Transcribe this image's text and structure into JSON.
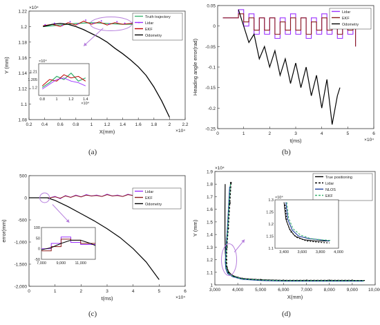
{
  "chart_data": [
    {
      "id": "a",
      "type": "line",
      "caption": "(a)",
      "xlabel": "X(mm)",
      "ylabel": "Y (mm)",
      "x_exponent": "×10⁴",
      "y_exponent": "×10⁴",
      "xlim": [
        0.2,
        2.2
      ],
      "ylim": [
        1.08,
        1.22
      ],
      "x_ticks": [
        "0.2",
        "0.4",
        "0.6",
        "0.8",
        "1",
        "1.2",
        "1.4",
        "1.6",
        "1.8",
        "2",
        "2.2"
      ],
      "y_ticks": [
        "1.08",
        "1.1",
        "1.12",
        "1.14",
        "1.16",
        "1.18",
        "1.2",
        "1.22"
      ],
      "legend": [
        "Truth trajectory",
        "Lidar",
        "EKF",
        "Odometry"
      ],
      "colors": {
        "truth": "#3cb371",
        "lidar": "#9b30ff",
        "ekf": "#c00000",
        "odometry": "#000000",
        "annot": "#b57edc"
      },
      "series": [
        {
          "name": "Truth trajectory",
          "x": [
            0.38,
            0.6,
            0.8,
            1.0,
            1.2,
            1.4,
            1.6
          ],
          "y": [
            1.2,
            1.202,
            1.204,
            1.205,
            1.204,
            1.203,
            1.203
          ]
        },
        {
          "name": "EKF",
          "x": [
            0.38,
            0.5,
            0.6,
            0.7,
            0.8,
            0.9,
            1.0,
            1.1,
            1.2,
            1.3,
            1.4,
            1.5,
            1.6
          ],
          "y": [
            1.201,
            1.203,
            1.2,
            1.205,
            1.202,
            1.207,
            1.203,
            1.206,
            1.202,
            1.205,
            1.203,
            1.204,
            1.203
          ]
        },
        {
          "name": "Odometry",
          "x": [
            0.38,
            0.5,
            0.6,
            0.7,
            0.8,
            0.9,
            1.0,
            1.1,
            1.2,
            1.3,
            1.4,
            1.5,
            1.6,
            1.7,
            1.8,
            1.9,
            2.0
          ],
          "y": [
            1.2,
            1.203,
            1.204,
            1.203,
            1.2,
            1.196,
            1.191,
            1.186,
            1.18,
            1.172,
            1.165,
            1.157,
            1.148,
            1.137,
            1.122,
            1.104,
            1.083
          ]
        }
      ],
      "inset": {
        "x_exponent": "×10⁴",
        "y_exponent": "×10⁴",
        "xlim": [
          0.75,
          1.45
        ],
        "ylim": [
          1.195,
          1.215
        ],
        "x_ticks": [
          "0.8",
          "1",
          "1.2",
          "1.4"
        ],
        "y_ticks": [
          "1.2",
          "1.205",
          "1.21"
        ]
      }
    },
    {
      "id": "b",
      "type": "line",
      "caption": "(b)",
      "xlabel": "t(ms)",
      "ylabel": "Heading angle error(rad)",
      "x_exponent": "×10⁴",
      "xlim": [
        0,
        6
      ],
      "ylim": [
        -0.25,
        0.05
      ],
      "x_ticks": [
        "0",
        "1",
        "2",
        "3",
        "4",
        "5",
        "6"
      ],
      "y_ticks": [
        "0.05",
        "0",
        "-0.05",
        "-0.1",
        "-0.15",
        "-0.2",
        "-0.25"
      ],
      "legend": [
        "Lidar",
        "EKF",
        "Odometry"
      ],
      "colors": {
        "lidar": "#9b30ff",
        "ekf": "#8b1a1a",
        "odometry": "#000000"
      },
      "series": [
        {
          "name": "Lidar",
          "x": [
            0.2,
            0.7,
            0.8,
            1.0,
            1.2,
            1.4,
            1.6,
            1.8,
            2.0,
            2.2,
            2.4,
            2.6,
            2.8,
            3.0,
            3.2,
            3.4,
            3.6,
            3.8,
            4.0,
            4.2,
            4.4,
            4.6,
            4.8,
            5.0,
            5.2,
            5.3
          ],
          "y": [
            0.02,
            0.02,
            0.04,
            0.0,
            0.03,
            -0.02,
            0.02,
            -0.02,
            0.02,
            -0.03,
            0.02,
            -0.02,
            0.03,
            -0.02,
            0.02,
            -0.03,
            0.02,
            -0.02,
            0.03,
            -0.02,
            0.02,
            -0.03,
            0.02,
            -0.02,
            0.02,
            -0.05
          ]
        },
        {
          "name": "EKF",
          "x": [
            0.2,
            0.7,
            0.8,
            1.0,
            1.2,
            1.4,
            1.6,
            1.8,
            2.0,
            2.2,
            2.4,
            2.6,
            2.8,
            3.0,
            3.2,
            3.4,
            3.6,
            3.8,
            4.0,
            4.2,
            4.4,
            4.6,
            4.8,
            5.0,
            5.2,
            5.3
          ],
          "y": [
            0.02,
            0.02,
            0.03,
            0.01,
            0.02,
            -0.01,
            0.02,
            -0.01,
            0.02,
            -0.02,
            0.01,
            -0.01,
            0.02,
            -0.01,
            0.02,
            -0.02,
            0.01,
            -0.01,
            0.02,
            -0.01,
            0.02,
            -0.02,
            0.01,
            -0.01,
            0.02,
            -0.05
          ]
        },
        {
          "name": "Odometry",
          "x": [
            0.8,
            1.0,
            1.2,
            1.4,
            1.6,
            1.8,
            2.0,
            2.2,
            2.4,
            2.6,
            2.8,
            3.0,
            3.2,
            3.4,
            3.6,
            3.8,
            4.0,
            4.2,
            4.4,
            4.6,
            4.7
          ],
          "y": [
            0.04,
            0.0,
            -0.04,
            -0.02,
            -0.08,
            -0.05,
            -0.1,
            -0.06,
            -0.12,
            -0.08,
            -0.14,
            -0.09,
            -0.15,
            -0.1,
            -0.17,
            -0.12,
            -0.2,
            -0.13,
            -0.24,
            -0.17,
            -0.15
          ]
        }
      ]
    },
    {
      "id": "c",
      "type": "line",
      "caption": "(c)",
      "xlabel": "t(ms)",
      "ylabel": "error(mm)",
      "x_exponent": "×10⁴",
      "xlim": [
        0,
        6
      ],
      "ylim": [
        -2000,
        500
      ],
      "x_ticks": [
        "0",
        "1",
        "2",
        "3",
        "4",
        "5",
        "6"
      ],
      "y_ticks": [
        "500",
        "0",
        "-500",
        "-1,000",
        "-1,500",
        "-2,000"
      ],
      "legend": [
        "Lidar",
        "EKF",
        "Odometry"
      ],
      "colors": {
        "lidar": "#9b30ff",
        "ekf": "#8b1a1a",
        "odometry": "#000000",
        "annot": "#b57edc"
      },
      "series": [
        {
          "name": "Lidar",
          "x": [
            0,
            0.8,
            1.0,
            1.2,
            1.4,
            1.6,
            1.8,
            2.0,
            2.2,
            2.4,
            2.6,
            2.8,
            3.0,
            3.2,
            3.4,
            3.6,
            3.8,
            4.0,
            4.2,
            4.4,
            4.6,
            4.8,
            5.0
          ],
          "y": [
            0,
            0,
            30,
            -20,
            50,
            10,
            60,
            20,
            70,
            40,
            60,
            30,
            80,
            40,
            60,
            30,
            80,
            50,
            70,
            40,
            90,
            50,
            0
          ]
        },
        {
          "name": "EKF",
          "x": [
            0,
            0.8,
            1.0,
            1.2,
            1.4,
            1.6,
            1.8,
            2.0,
            2.2,
            2.4,
            2.6,
            2.8,
            3.0,
            3.2,
            3.4,
            3.6,
            3.8,
            4.0,
            4.2,
            4.4,
            4.6,
            4.8,
            5.0
          ],
          "y": [
            0,
            0,
            20,
            -10,
            40,
            10,
            50,
            20,
            60,
            40,
            50,
            30,
            70,
            40,
            50,
            30,
            70,
            50,
            60,
            40,
            80,
            50,
            0
          ]
        },
        {
          "name": "Odometry",
          "x": [
            0,
            0.7,
            1.0,
            1.5,
            2.0,
            2.5,
            3.0,
            3.5,
            4.0,
            4.5,
            5.0
          ],
          "y": [
            0,
            0,
            -60,
            -200,
            -360,
            -520,
            -700,
            -900,
            -1150,
            -1450,
            -1850
          ]
        }
      ],
      "inset": {
        "xlim": [
          7000,
          12500
        ],
        "ylim": [
          -50,
          100
        ],
        "x_ticks": [
          "7,000",
          "9,000",
          "11,000"
        ],
        "y_ticks": [
          "100",
          "50",
          "0",
          "-50"
        ]
      }
    },
    {
      "id": "d",
      "type": "line",
      "caption": "(d)",
      "xlabel": "X(mm)",
      "ylabel": "Y (mm)",
      "y_exponent": "×10⁴",
      "xlim": [
        3000,
        10000
      ],
      "ylim": [
        1.0,
        1.9
      ],
      "x_ticks": [
        "3,000",
        "4,000",
        "5,000",
        "6,000",
        "7,000",
        "8,000",
        "9,000",
        "10,000"
      ],
      "y_ticks": [
        "1.9",
        "1.8",
        "1.7",
        "1.6",
        "1.5",
        "1.4",
        "1.3",
        "1.2",
        "1.1",
        "1"
      ],
      "legend": [
        "True positioning",
        "Lidar",
        "NLOS",
        "EKF"
      ],
      "colors": {
        "true": "#000000",
        "lidar": "#000000",
        "nlos": "#1a3a9b",
        "ekf": "#3cb371",
        "annot": "#b57edc"
      },
      "series": [
        {
          "name": "True positioning",
          "x": [
            3450,
            3440,
            3440,
            3460,
            3500,
            3600,
            3800,
            4200,
            5000,
            6000,
            7000,
            8000,
            9000,
            9550
          ],
          "y": [
            1.8,
            1.6,
            1.4,
            1.25,
            1.15,
            1.1,
            1.07,
            1.05,
            1.04,
            1.035,
            1.035,
            1.035,
            1.035,
            1.035
          ]
        },
        {
          "name": "Lidar",
          "x": [
            3700,
            3650,
            3580,
            3520,
            3500,
            3520,
            3600,
            3800,
            4200,
            5000,
            6000,
            7000,
            8000,
            9000
          ],
          "y": [
            1.81,
            1.65,
            1.45,
            1.3,
            1.2,
            1.14,
            1.1,
            1.07,
            1.05,
            1.04,
            1.035,
            1.035,
            1.035,
            1.035
          ]
        },
        {
          "name": "NLOS",
          "x": [
            3650,
            3600,
            3540,
            3480,
            3460,
            3480,
            3560,
            3780,
            4200,
            5000,
            6000,
            7000,
            8000,
            9000,
            9500
          ],
          "y": [
            1.78,
            1.62,
            1.42,
            1.28,
            1.18,
            1.13,
            1.09,
            1.065,
            1.045,
            1.035,
            1.03,
            1.03,
            1.03,
            1.03,
            1.03
          ]
        },
        {
          "name": "EKF",
          "x": [
            3680,
            3620,
            3560,
            3500,
            3480,
            3500,
            3580,
            3790,
            4200,
            5000,
            6000,
            7000,
            8000,
            9000,
            9500
          ],
          "y": [
            1.8,
            1.64,
            1.44,
            1.29,
            1.19,
            1.135,
            1.095,
            1.068,
            1.048,
            1.038,
            1.033,
            1.033,
            1.033,
            1.033,
            1.033
          ]
        }
      ],
      "inset": {
        "y_exponent": "×10⁴",
        "xlim": [
          3300,
          4000
        ],
        "ylim": [
          1.1,
          1.3
        ],
        "x_ticks": [
          "3,400",
          "3,600",
          "3,800",
          "4,000"
        ],
        "y_ticks": [
          "1.3",
          "1.25",
          "1.2",
          "1.15",
          "1.1"
        ]
      }
    }
  ]
}
